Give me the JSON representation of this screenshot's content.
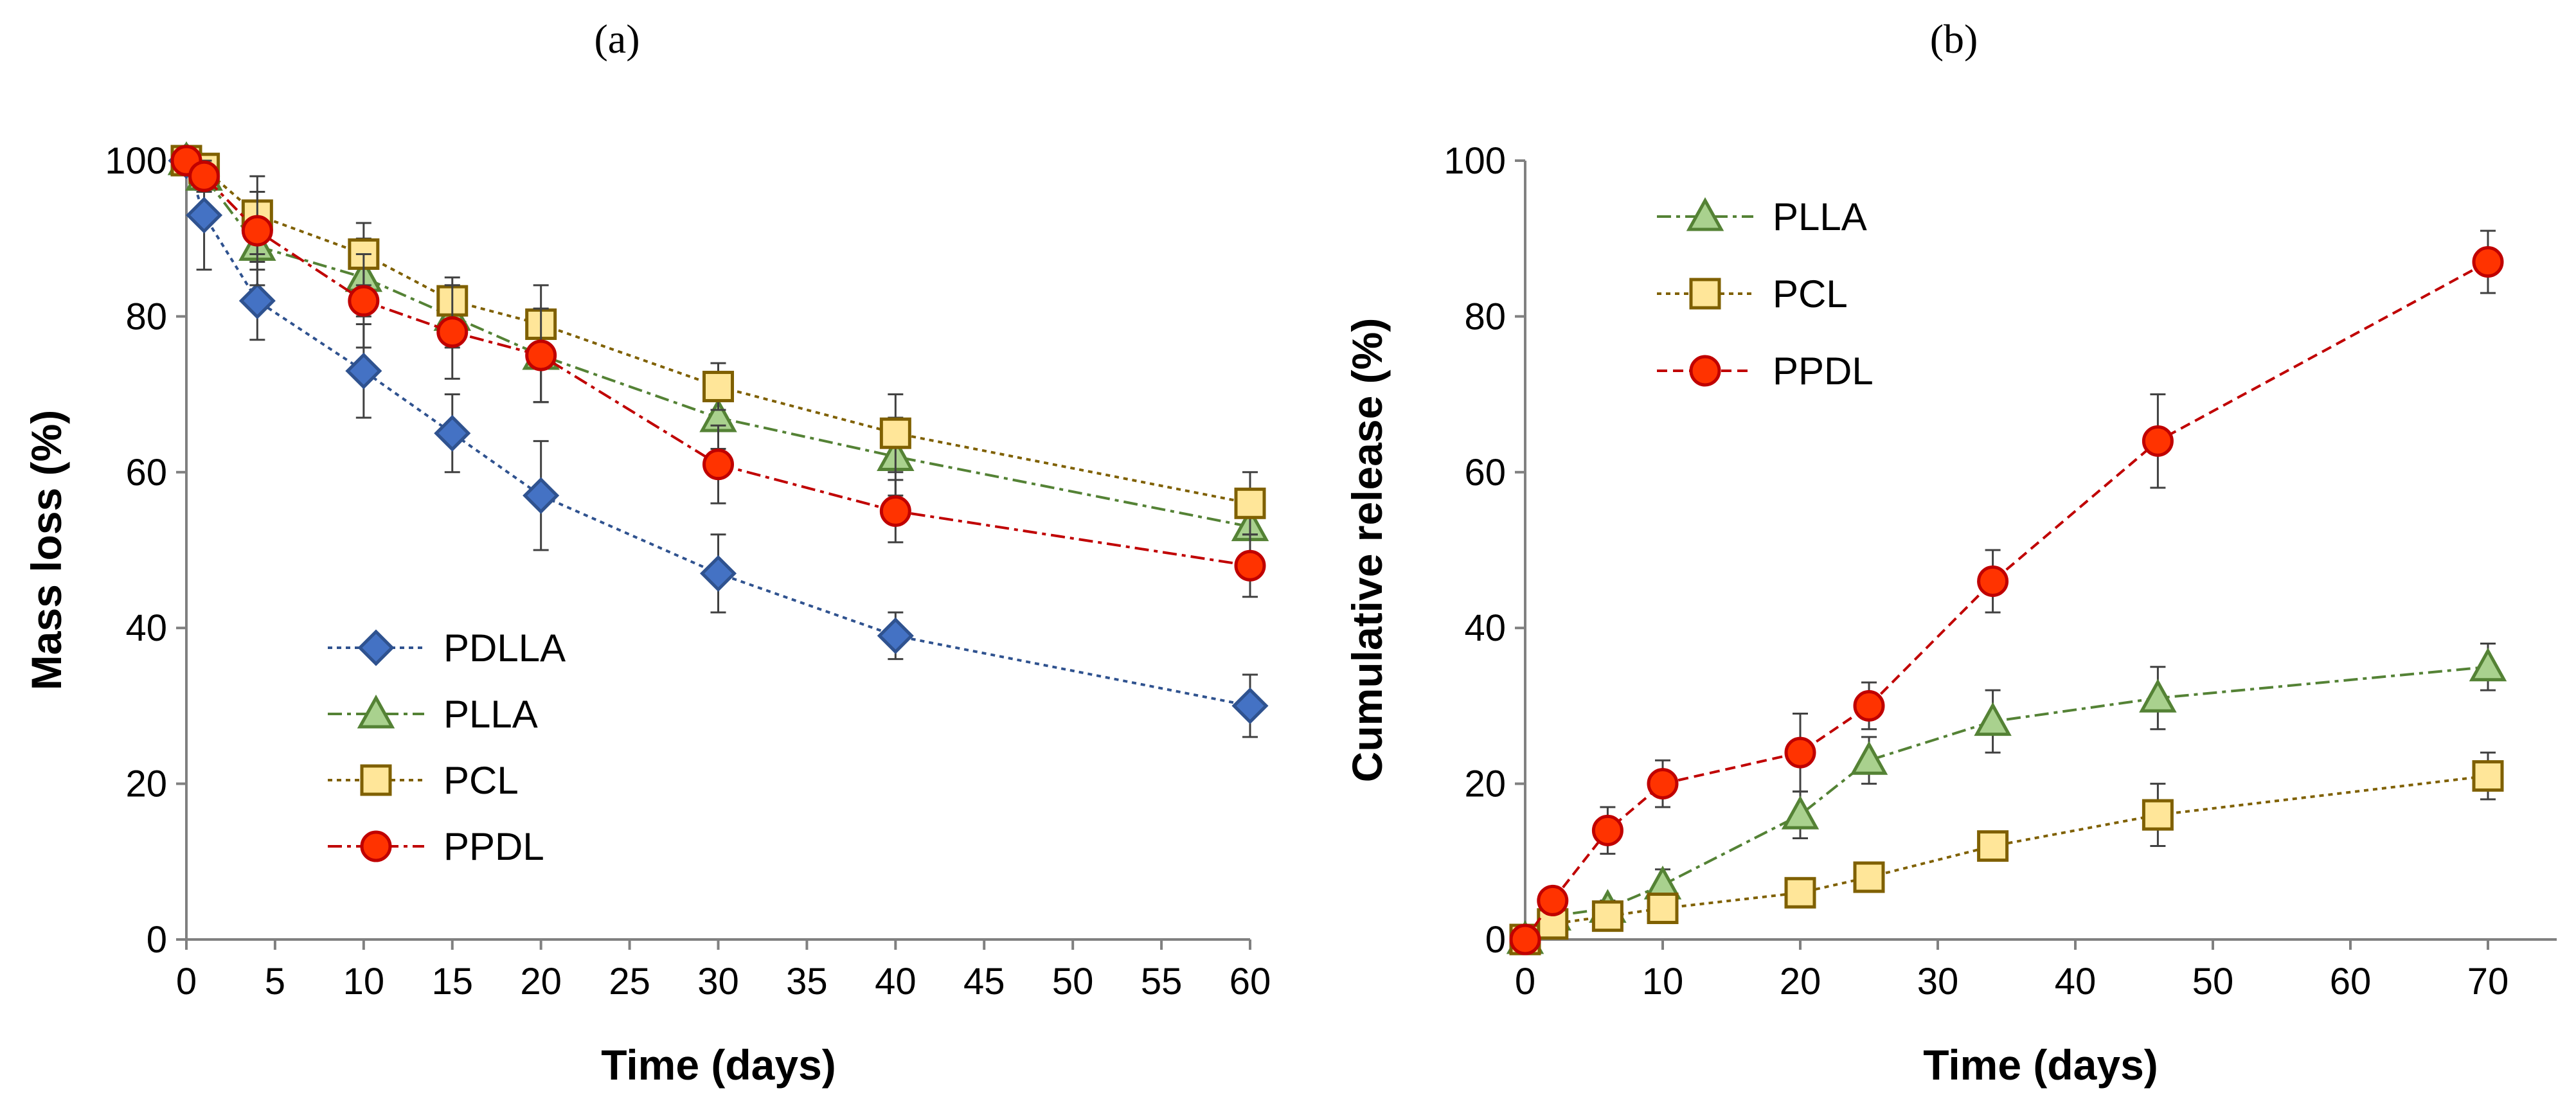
{
  "chart_data": [
    {
      "type": "line",
      "panel_label": "(a)",
      "xlabel": "Time (days)",
      "ylabel": "Mass loss (%)",
      "xlim": [
        0,
        60
      ],
      "ylim": [
        0,
        100
      ],
      "xticks": [
        0,
        5,
        10,
        15,
        20,
        25,
        30,
        35,
        40,
        45,
        50,
        55,
        60
      ],
      "yticks": [
        0,
        20,
        40,
        60,
        80,
        100
      ],
      "legend_position": "bottom-left",
      "series": [
        {
          "name": "PDLLA",
          "marker": "diamond",
          "dash": "dotted",
          "color": "#2F528F",
          "fill": "#4472C4",
          "x": [
            0,
            1,
            4,
            10,
            15,
            20,
            30,
            40,
            60
          ],
          "y": [
            100,
            93,
            82,
            73,
            65,
            57,
            47,
            39,
            30
          ],
          "err": [
            0,
            7,
            5,
            6,
            5,
            7,
            5,
            3,
            4
          ]
        },
        {
          "name": "PLLA",
          "marker": "triangle",
          "dash": "dashdot",
          "color": "#548235",
          "fill": "#A9D18E",
          "x": [
            0,
            1,
            4,
            10,
            15,
            20,
            30,
            40,
            60
          ],
          "y": [
            100,
            98,
            89,
            85,
            80,
            75,
            67,
            62,
            53
          ],
          "err": [
            0,
            2,
            5,
            5,
            4,
            6,
            4,
            5,
            4
          ]
        },
        {
          "name": "PCL",
          "marker": "square",
          "dash": "dotted",
          "color": "#7F6000",
          "fill": "#FFE699",
          "x": [
            0,
            1,
            4,
            10,
            15,
            20,
            30,
            40,
            60
          ],
          "y": [
            100,
            99,
            93,
            88,
            82,
            79,
            71,
            65,
            56
          ],
          "err": [
            0,
            1,
            5,
            4,
            3,
            5,
            3,
            5,
            4
          ]
        },
        {
          "name": "PPDL",
          "marker": "circle",
          "dash": "dashdot",
          "color": "#C00000",
          "fill": "#FF3300",
          "x": [
            0,
            1,
            4,
            10,
            15,
            20,
            30,
            40,
            60
          ],
          "y": [
            100,
            98,
            91,
            82,
            78,
            75,
            61,
            55,
            48
          ],
          "err": [
            0,
            2,
            5,
            6,
            6,
            6,
            5,
            4,
            4
          ]
        }
      ]
    },
    {
      "type": "line",
      "panel_label": "(b)",
      "xlabel": "Time (days)",
      "ylabel": "Cumulative release (%)",
      "xlim": [
        0,
        75
      ],
      "ylim": [
        0,
        100
      ],
      "xticks": [
        0,
        10,
        20,
        30,
        40,
        50,
        60,
        70
      ],
      "yticks": [
        0,
        20,
        40,
        60,
        80,
        100
      ],
      "legend_position": "top-left",
      "series": [
        {
          "name": "PLLA",
          "marker": "triangle",
          "dash": "dashdot",
          "color": "#548235",
          "fill": "#A9D18E",
          "x": [
            0,
            2,
            6,
            10,
            20,
            25,
            34,
            46,
            70
          ],
          "y": [
            0,
            3,
            4,
            7,
            16,
            23,
            28,
            31,
            35
          ],
          "err": [
            0,
            1,
            1,
            2,
            3,
            3,
            4,
            4,
            3
          ]
        },
        {
          "name": "PCL",
          "marker": "square",
          "dash": "dotted",
          "color": "#7F6000",
          "fill": "#FFE699",
          "x": [
            0,
            2,
            6,
            10,
            20,
            25,
            34,
            46,
            70
          ],
          "y": [
            0,
            2,
            3,
            4,
            6,
            8,
            12,
            16,
            21
          ],
          "err": [
            0,
            1,
            1,
            1,
            1,
            1,
            1,
            4,
            3
          ]
        },
        {
          "name": "PPDL",
          "marker": "circle",
          "dash": "dashed",
          "color": "#C00000",
          "fill": "#FF3300",
          "x": [
            0,
            2,
            6,
            10,
            20,
            25,
            34,
            46,
            70
          ],
          "y": [
            0,
            5,
            14,
            20,
            24,
            30,
            46,
            64,
            87
          ],
          "err": [
            0,
            1,
            3,
            3,
            5,
            3,
            4,
            6,
            4
          ]
        }
      ]
    }
  ]
}
